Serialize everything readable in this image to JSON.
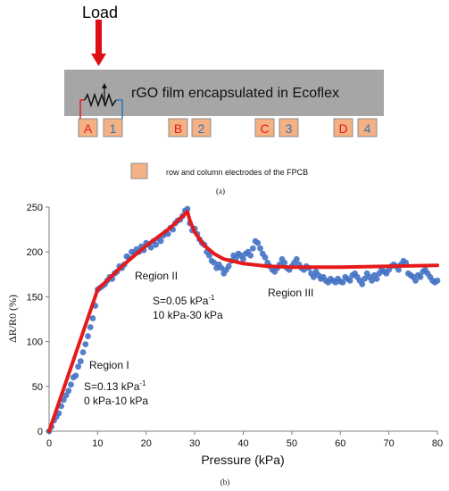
{
  "schematic": {
    "load_label": "Load",
    "film_label": "rGO film encapsulated in Ecoflex",
    "electrodes": [
      "A",
      "1",
      "B",
      "2",
      "C",
      "3",
      "D",
      "4"
    ],
    "legend_label": "row and column electrodes of the FPCB",
    "caption": "(a)",
    "colors": {
      "load_arrow": "#dd0f14",
      "film": "#a6a6a6",
      "electrode_fill": "#f4b183",
      "electrode_border": "#8c8c8c",
      "letter_text": "#e51a1a",
      "number_text": "#2e75b6",
      "wire_left": "#e51a1a",
      "wire_right": "#2e75b6"
    },
    "icons": [
      "down-arrow-icon",
      "variable-resistor-icon"
    ]
  },
  "chart_data": {
    "type": "scatter",
    "caption": "(b)",
    "xlabel": "Pressure (kPa)",
    "ylabel": "ΔR/R0 (%)",
    "xlim": [
      0,
      80
    ],
    "ylim": [
      0,
      250
    ],
    "xticks": [
      0,
      10,
      20,
      30,
      40,
      50,
      60,
      70,
      80
    ],
    "yticks": [
      0,
      50,
      100,
      150,
      200,
      250
    ],
    "grid": false,
    "colors": {
      "points": "#4472c4",
      "fit": "#e51a1a"
    },
    "regions": [
      {
        "name": "Region I",
        "sensitivity": "S=0.13 kPa",
        "superscript": "-1",
        "range": "0 kPa-10 kPa"
      },
      {
        "name": "Region II",
        "sensitivity": "S=0.05 kPa",
        "superscript": "-1",
        "range": "10 kPa-30 kPa"
      },
      {
        "name": "Region III"
      }
    ],
    "measured_points": [
      [
        0,
        0
      ],
      [
        0.5,
        5
      ],
      [
        1,
        12
      ],
      [
        1.5,
        16
      ],
      [
        2,
        20
      ],
      [
        2.5,
        28
      ],
      [
        3,
        35
      ],
      [
        3.5,
        40
      ],
      [
        4,
        45
      ],
      [
        4.5,
        52
      ],
      [
        5,
        60
      ],
      [
        5.5,
        62
      ],
      [
        6,
        72
      ],
      [
        6.5,
        78
      ],
      [
        7,
        88
      ],
      [
        7.5,
        97
      ],
      [
        8,
        106
      ],
      [
        8.5,
        116
      ],
      [
        9,
        126
      ],
      [
        9.5,
        140
      ],
      [
        10,
        158
      ],
      [
        10.5,
        160
      ],
      [
        11,
        162
      ],
      [
        11.5,
        164
      ],
      [
        12,
        168
      ],
      [
        12.5,
        172
      ],
      [
        13,
        170
      ],
      [
        13.5,
        176
      ],
      [
        14,
        178
      ],
      [
        14.5,
        184
      ],
      [
        15,
        182
      ],
      [
        15.5,
        186
      ],
      [
        16,
        195
      ],
      [
        16.5,
        193
      ],
      [
        17,
        200
      ],
      [
        17.5,
        199
      ],
      [
        18,
        203
      ],
      [
        18.5,
        200
      ],
      [
        19,
        206
      ],
      [
        19.5,
        202
      ],
      [
        20,
        210
      ],
      [
        20.5,
        208
      ],
      [
        21,
        205
      ],
      [
        21.5,
        212
      ],
      [
        22,
        208
      ],
      [
        22.5,
        215
      ],
      [
        23,
        212
      ],
      [
        23.5,
        218
      ],
      [
        24,
        222
      ],
      [
        24.5,
        220
      ],
      [
        25,
        227
      ],
      [
        25.5,
        225
      ],
      [
        26,
        232
      ],
      [
        26.5,
        235
      ],
      [
        27,
        236
      ],
      [
        27.5,
        240
      ],
      [
        28,
        246
      ],
      [
        28.5,
        248
      ],
      [
        29,
        232
      ],
      [
        29.5,
        224
      ],
      [
        30,
        226
      ],
      [
        30.5,
        220
      ],
      [
        31,
        214
      ],
      [
        31.5,
        210
      ],
      [
        32,
        208
      ],
      [
        32.5,
        200
      ],
      [
        33,
        196
      ],
      [
        33.5,
        190
      ],
      [
        34,
        188
      ],
      [
        34.5,
        182
      ],
      [
        35,
        186
      ],
      [
        35.5,
        182
      ],
      [
        36,
        176
      ],
      [
        36.5,
        180
      ],
      [
        37,
        184
      ],
      [
        37.5,
        190
      ],
      [
        38,
        196
      ],
      [
        38.5,
        193
      ],
      [
        39,
        198
      ],
      [
        39.5,
        196
      ],
      [
        40,
        192
      ],
      [
        40.5,
        198
      ],
      [
        41,
        200
      ],
      [
        41.5,
        196
      ],
      [
        42,
        204
      ],
      [
        42.5,
        212
      ],
      [
        43,
        210
      ],
      [
        43.5,
        204
      ],
      [
        44,
        198
      ],
      [
        44.5,
        194
      ],
      [
        45,
        188
      ],
      [
        45.5,
        184
      ],
      [
        46,
        180
      ],
      [
        46.5,
        178
      ],
      [
        47,
        182
      ],
      [
        47.5,
        186
      ],
      [
        48,
        192
      ],
      [
        48.5,
        188
      ],
      [
        49,
        182
      ],
      [
        49.5,
        180
      ],
      [
        50,
        184
      ],
      [
        50.5,
        188
      ],
      [
        51,
        192
      ],
      [
        51.5,
        186
      ],
      [
        52,
        182
      ],
      [
        52.5,
        180
      ],
      [
        53,
        184
      ],
      [
        53.5,
        182
      ],
      [
        54,
        176
      ],
      [
        54.5,
        172
      ],
      [
        55,
        178
      ],
      [
        55.5,
        174
      ],
      [
        56,
        170
      ],
      [
        56.5,
        172
      ],
      [
        57,
        168
      ],
      [
        57.5,
        166
      ],
      [
        58,
        170
      ],
      [
        58.5,
        168
      ],
      [
        59,
        166
      ],
      [
        59.5,
        170
      ],
      [
        60,
        167
      ],
      [
        60.5,
        166
      ],
      [
        61,
        172
      ],
      [
        61.5,
        170
      ],
      [
        62,
        168
      ],
      [
        62.5,
        174
      ],
      [
        63,
        176
      ],
      [
        63.5,
        172
      ],
      [
        64,
        168
      ],
      [
        64.5,
        164
      ],
      [
        65,
        170
      ],
      [
        65.5,
        176
      ],
      [
        66,
        172
      ],
      [
        66.5,
        168
      ],
      [
        67,
        174
      ],
      [
        67.5,
        170
      ],
      [
        68,
        176
      ],
      [
        68.5,
        180
      ],
      [
        69,
        178
      ],
      [
        69.5,
        176
      ],
      [
        70,
        180
      ],
      [
        70.5,
        184
      ],
      [
        71,
        186
      ],
      [
        71.5,
        184
      ],
      [
        72,
        180
      ],
      [
        72.5,
        186
      ],
      [
        73,
        190
      ],
      [
        73.5,
        188
      ],
      [
        74,
        176
      ],
      [
        74.5,
        174
      ],
      [
        75,
        172
      ],
      [
        75.5,
        168
      ],
      [
        76,
        174
      ],
      [
        76.5,
        172
      ],
      [
        77,
        178
      ],
      [
        77.5,
        180
      ],
      [
        78,
        176
      ],
      [
        78.5,
        172
      ],
      [
        79,
        168
      ],
      [
        79.5,
        166
      ],
      [
        80,
        168
      ]
    ],
    "fit_line": [
      [
        0,
        0
      ],
      [
        10,
        158
      ],
      [
        15,
        184
      ],
      [
        20,
        207
      ],
      [
        25,
        227
      ],
      [
        28.5,
        245
      ],
      [
        29,
        235
      ],
      [
        30,
        222
      ],
      [
        32,
        207
      ],
      [
        34,
        198
      ],
      [
        36,
        192
      ],
      [
        40,
        187
      ],
      [
        45,
        184
      ],
      [
        50,
        183
      ],
      [
        60,
        183
      ],
      [
        70,
        184
      ],
      [
        80,
        185
      ]
    ]
  }
}
